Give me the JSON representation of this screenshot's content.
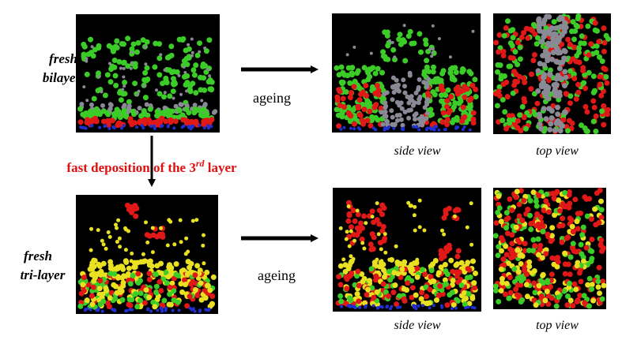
{
  "rows": [
    {
      "label": [
        "fresh",
        "bilayer"
      ],
      "arrow_label": "ageing",
      "views": [
        "side view",
        "top view"
      ]
    },
    {
      "label": [
        "fresh",
        "tri-layer"
      ],
      "arrow_label": "ageing",
      "views": [
        "side view",
        "top view"
      ]
    }
  ],
  "transition": {
    "text": "fast deposition  of the 3",
    "superscript": "rd",
    "suffix": " layer"
  }
}
